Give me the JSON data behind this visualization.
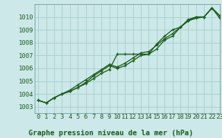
{
  "title": "Graphe pression niveau de la mer (hPa)",
  "background_color": "#cce8e8",
  "grid_color": "#aacfcf",
  "line_color": "#1a5c1a",
  "marker_color": "#1a5c1a",
  "xlim": [
    -0.5,
    23
  ],
  "ylim": [
    1002.5,
    1011.0
  ],
  "xticks": [
    0,
    1,
    2,
    3,
    4,
    5,
    6,
    7,
    8,
    9,
    10,
    11,
    12,
    13,
    14,
    15,
    16,
    17,
    18,
    19,
    20,
    21,
    22,
    23
  ],
  "yticks": [
    1003,
    1004,
    1005,
    1006,
    1007,
    1008,
    1009,
    1010
  ],
  "series": [
    [
      1003.5,
      1003.3,
      1003.7,
      1004.0,
      1004.2,
      1004.5,
      1004.8,
      1005.2,
      1005.6,
      1005.9,
      1007.1,
      1007.1,
      1007.1,
      1007.1,
      1007.1,
      1007.5,
      1008.2,
      1008.5,
      1009.2,
      1009.8,
      1010.0,
      1010.0,
      1010.7,
      1010.1
    ],
    [
      1003.5,
      1003.3,
      1003.7,
      1004.0,
      1004.2,
      1004.5,
      1004.9,
      1005.4,
      1005.8,
      1006.2,
      1006.0,
      1006.2,
      1006.6,
      1007.0,
      1007.1,
      1007.9,
      1008.5,
      1009.0,
      1009.2,
      1009.7,
      1010.0,
      1010.0,
      1010.7,
      1010.1
    ],
    [
      1003.5,
      1003.3,
      1003.7,
      1004.0,
      1004.3,
      1004.7,
      1005.1,
      1005.5,
      1005.9,
      1006.3,
      1006.1,
      1006.4,
      1006.8,
      1007.2,
      1007.3,
      1007.8,
      1008.3,
      1008.7,
      1009.2,
      1009.7,
      1009.9,
      1010.0,
      1010.7,
      1009.9
    ]
  ],
  "marker_size": 3.5,
  "line_width": 1.0,
  "font_color": "#1a5c1a",
  "tick_fontsize": 6.5,
  "label_fontsize": 7.5
}
